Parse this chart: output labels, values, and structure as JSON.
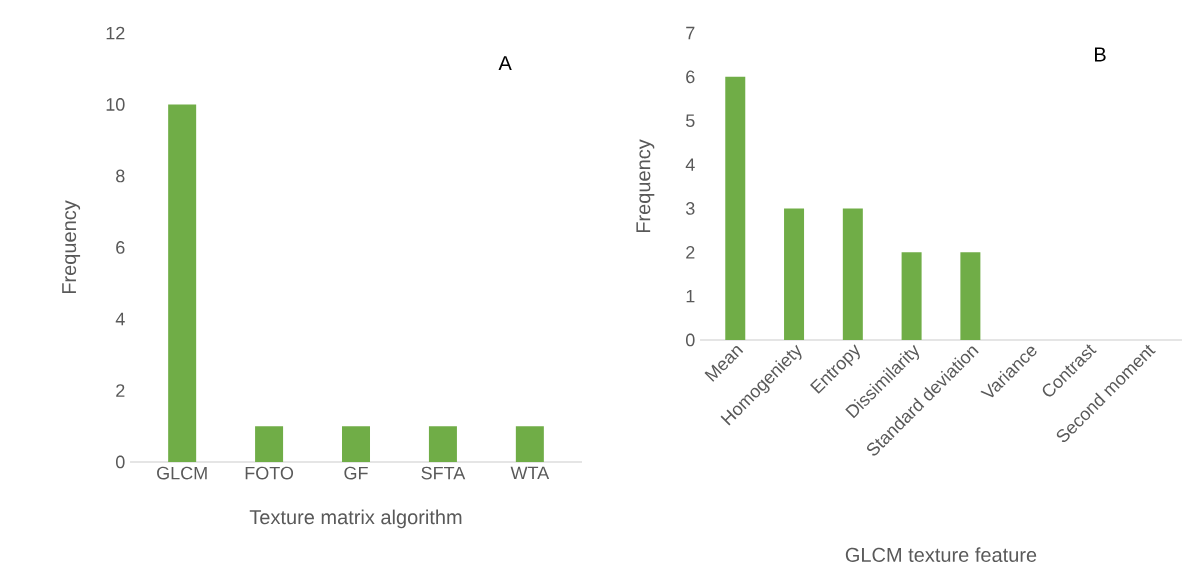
{
  "chart_data": [
    {
      "type": "bar",
      "xlabel": "Texture matrix algorithm",
      "ylabel": "Frequency",
      "categories": [
        "GLCM",
        "FOTO",
        "GF",
        "SFTA",
        "WTA"
      ],
      "values": [
        10,
        1,
        1,
        1,
        1
      ],
      "color": "#70ad47",
      "ylim": [
        0,
        12
      ],
      "yticks": [
        0,
        2,
        4,
        6,
        8,
        10,
        12
      ],
      "annotations": [
        "A"
      ]
    },
    {
      "type": "bar",
      "xlabel": "GLCM texture feature",
      "ylabel": "Frequency",
      "categories": [
        "Mean",
        "Homogeniety",
        "Entropy",
        "Dissimilarity",
        "Standard deviation",
        "Variance",
        "Contrast",
        "Second moment"
      ],
      "values": [
        6,
        3,
        3,
        2,
        2,
        0,
        0,
        0
      ],
      "color": "#70ad47",
      "ylim": [
        0,
        7
      ],
      "yticks": [
        0,
        1,
        2,
        3,
        4,
        5,
        6,
        7
      ],
      "annotations": [
        "B"
      ]
    }
  ]
}
